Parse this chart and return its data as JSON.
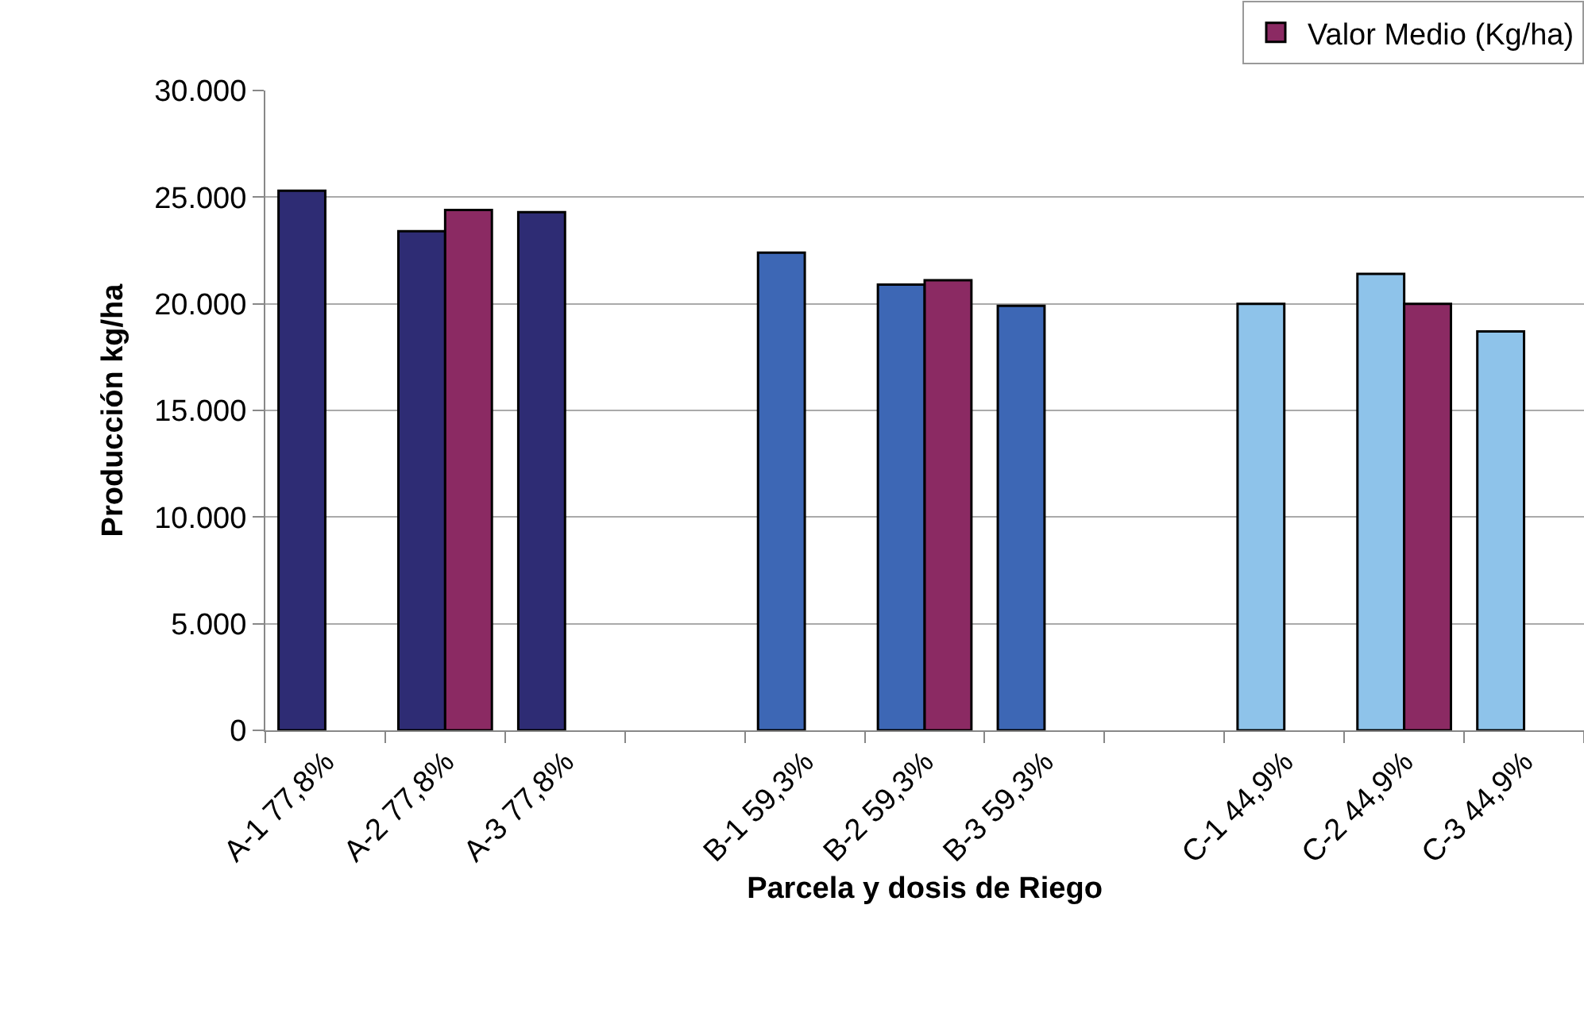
{
  "chart_data": {
    "type": "bar",
    "xlabel": "Parcela y dosis de Riego",
    "ylabel": "Producción kg/ha",
    "categories": [
      "A-1 77,8%",
      "A-2 77,8%",
      "A-3 77,8%",
      null,
      "B-1 59,3%",
      "B-2 59,3%",
      "B-3 59,3%",
      null,
      "C-1 44,9%",
      "C-2 44,9%",
      "C-3 44,9%"
    ],
    "series": [
      {
        "colors": [
          "#2e2c74",
          "#2e2c74",
          "#2e2c74",
          "#2e2c74",
          "#3d67b5",
          "#3d67b5",
          "#3d67b5",
          "#3d67b5",
          "#8ec3ea",
          "#8ec3ea",
          "#8ec3ea"
        ],
        "values": [
          25300,
          23400,
          24300,
          null,
          22400,
          20900,
          19900,
          null,
          20000,
          21400,
          18700
        ]
      },
      {
        "name": "Valor Medio (Kg/ha)",
        "color": "#8b2a63",
        "values": [
          null,
          24400,
          null,
          null,
          null,
          21100,
          null,
          null,
          null,
          20000,
          null
        ]
      }
    ],
    "ylim": [
      0,
      30000
    ],
    "yticks": [
      0,
      {
        "value": 5000,
        "label": "5.000"
      },
      {
        "value": 10000,
        "label": "10.000"
      },
      {
        "value": 15000,
        "label": "15.000"
      },
      {
        "value": 20000,
        "label": "20.000"
      },
      {
        "value": 25000,
        "label": "25.000"
      },
      {
        "value": 30000,
        "label": "30.000"
      }
    ],
    "grid": "y",
    "legend": "top right"
  }
}
